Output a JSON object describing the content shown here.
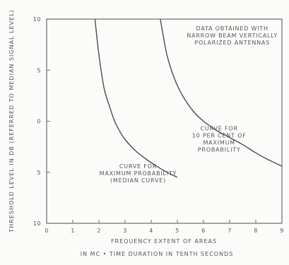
{
  "chart_data": {
    "type": "line",
    "xlabel": "FREQUENCY EXTENT OF AREAS",
    "xlabel_line2": "IN MC • TIME DURATION IN TENTH SECONDS",
    "ylabel": "THRESHOLD LEVEL IN DB (REFERRED TO MEDIAN SIGNAL LEVEL)",
    "xlim": [
      0,
      9
    ],
    "ylim": [
      -10,
      10
    ],
    "grid": false,
    "x_ticks": [
      "0",
      "1",
      "2",
      "3",
      "4",
      "5",
      "6",
      "7",
      "8",
      "9"
    ],
    "y_ticks": [
      {
        "value": 10,
        "label": "10"
      },
      {
        "value": 5,
        "label": "5"
      },
      {
        "value": 0,
        "label": "0"
      },
      {
        "value": -5,
        "label": "5"
      },
      {
        "value": -10,
        "label": "10"
      }
    ],
    "series": [
      {
        "name": "Curve for maximum probability (median curve)",
        "points": [
          [
            1.85,
            10
          ],
          [
            2.0,
            6.5
          ],
          [
            2.2,
            3.2
          ],
          [
            2.4,
            1.5
          ],
          [
            2.6,
            0.0
          ],
          [
            2.8,
            -1.0
          ],
          [
            3.0,
            -1.8
          ],
          [
            3.4,
            -2.9
          ],
          [
            3.8,
            -3.7
          ],
          [
            4.2,
            -4.4
          ],
          [
            4.6,
            -5.0
          ],
          [
            5.0,
            -5.5
          ]
        ]
      },
      {
        "name": "Curve for 10 per cent of maximum probability",
        "points": [
          [
            4.35,
            10
          ],
          [
            4.6,
            6.5
          ],
          [
            4.9,
            4.1
          ],
          [
            5.2,
            2.5
          ],
          [
            5.6,
            1.0
          ],
          [
            6.0,
            0.0
          ],
          [
            6.5,
            -0.9
          ],
          [
            7.0,
            -1.6
          ],
          [
            7.5,
            -2.3
          ],
          [
            8.0,
            -3.1
          ],
          [
            8.5,
            -3.8
          ],
          [
            9.0,
            -4.4
          ]
        ]
      }
    ],
    "annotations": [
      {
        "lines": [
          "DATA OBTAINED WITH",
          "NARROW BEAM VERTICALLY",
          "POLARIZED ANTENNAS"
        ],
        "x": 7.1,
        "y": 8.9
      },
      {
        "lines": [
          "CURVE FOR",
          "10 PER CENT OF",
          "MAXIMUM",
          "PROBABILITY"
        ],
        "x": 6.6,
        "y": -0.9
      },
      {
        "lines": [
          "CURVE FOR",
          "MAXIMUM PROBABILITY",
          "(MEDIAN CURVE)"
        ],
        "x": 3.5,
        "y": -4.6
      }
    ]
  }
}
